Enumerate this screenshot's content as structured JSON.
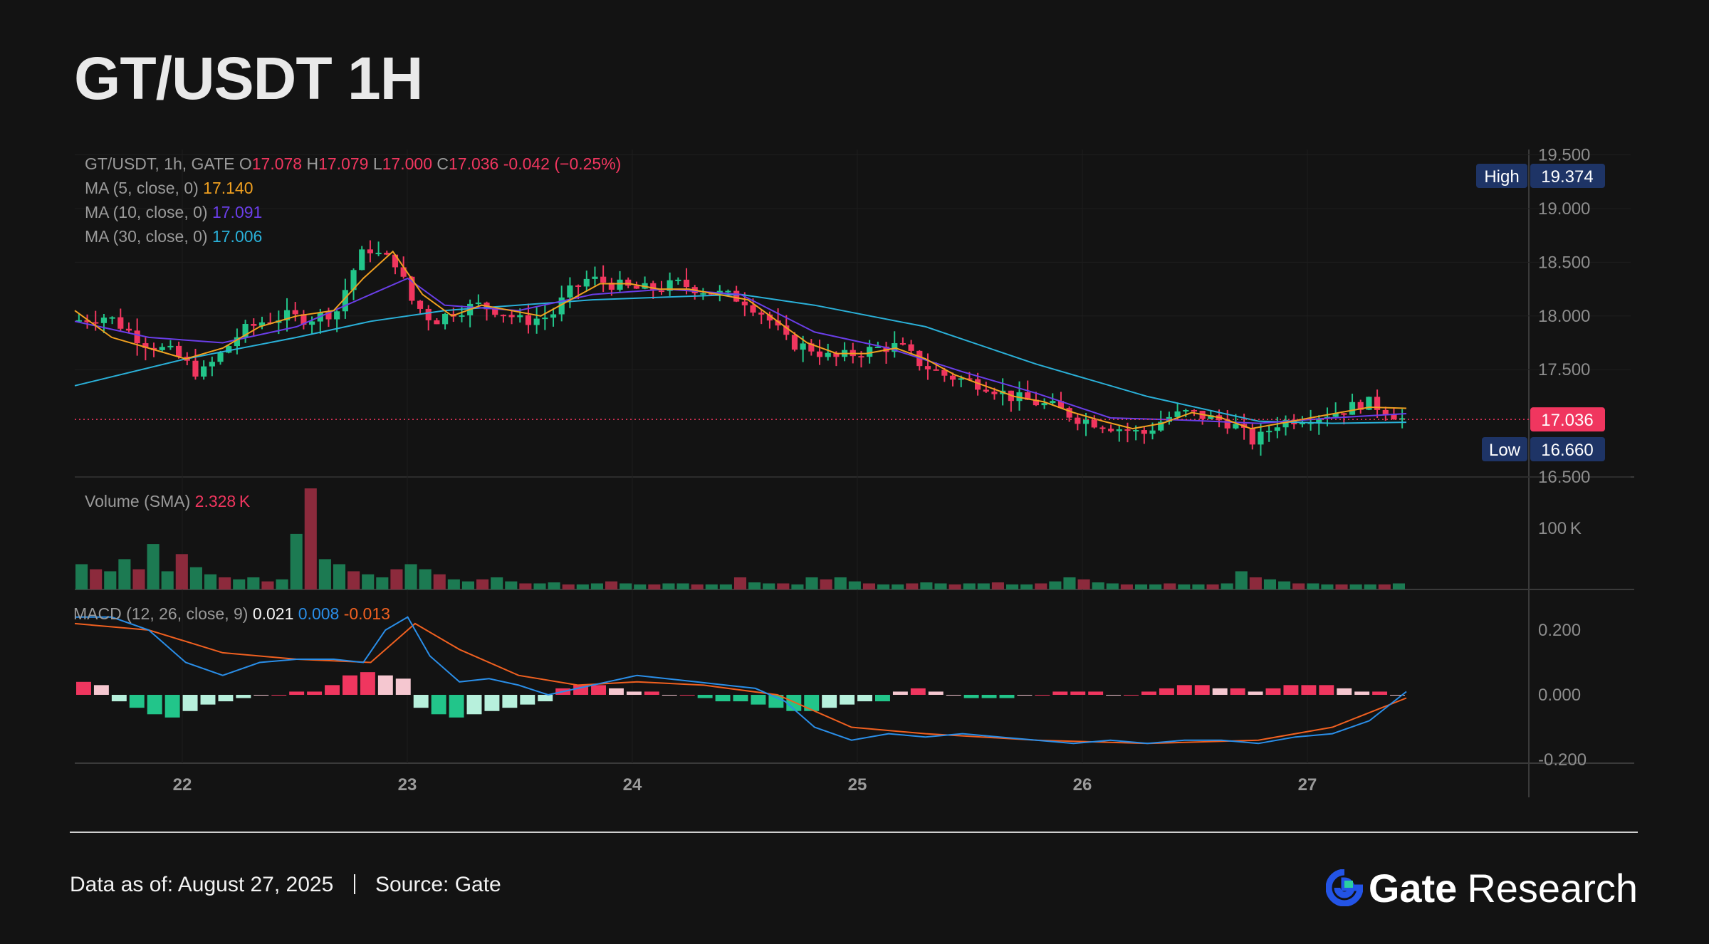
{
  "title": "GT/USDT 1H",
  "chart_data": {
    "type": "candlestick",
    "symbol_line": "GT/USDT, 1h, GATE",
    "ohlc": {
      "open": "17.078",
      "high": "17.079",
      "low": "17.000",
      "close": "17.036",
      "change": "-0.042 (−0.25%)"
    },
    "ma_legend": [
      {
        "label": "MA (5, close, 0)",
        "value": "17.140",
        "color": "#f0a020"
      },
      {
        "label": "MA (10, close, 0)",
        "value": "17.091",
        "color": "#6a3ee8"
      },
      {
        "label": "MA (30, close, 0)",
        "value": "17.006",
        "color": "#2ab0d8"
      }
    ],
    "price_axis": {
      "ticks": [
        "19.500",
        "19.000",
        "18.500",
        "18.000",
        "17.500",
        "16.500"
      ],
      "ylim": [
        16.5,
        19.55
      ]
    },
    "high_label": "High",
    "high_value": "19.374",
    "low_label": "Low",
    "low_value": "16.660",
    "last_price": "17.036",
    "volume_legend": "Volume (SMA)",
    "volume_value": "2.328 K",
    "volume_tick": "100 K",
    "macd_legend": "MACD (12, 26, close, 9)",
    "macd_values": [
      {
        "value": "0.021",
        "color": "#f5f5f5"
      },
      {
        "value": "0.008",
        "color": "#2a8ee8"
      },
      {
        "value": "-0.013",
        "color": "#f06020"
      }
    ],
    "macd_axis": {
      "ticks": [
        "0.200",
        "0.000",
        "-0.200"
      ]
    },
    "x_ticks": [
      "22",
      "23",
      "24",
      "25",
      "26",
      "27"
    ],
    "price_path": [
      [
        0,
        17.95
      ],
      [
        10,
        18.0
      ],
      [
        20,
        17.75
      ],
      [
        28,
        17.65
      ],
      [
        35,
        17.45
      ],
      [
        40,
        17.62
      ],
      [
        46,
        17.85
      ],
      [
        52,
        17.95
      ],
      [
        58,
        18.0
      ],
      [
        64,
        17.97
      ],
      [
        72,
        18.05
      ],
      [
        76,
        18.4
      ],
      [
        80,
        18.65
      ],
      [
        84,
        18.55
      ],
      [
        88,
        18.5
      ],
      [
        92,
        18.15
      ],
      [
        98,
        17.95
      ],
      [
        104,
        18.05
      ],
      [
        110,
        18.1
      ],
      [
        116,
        18.05
      ],
      [
        122,
        17.95
      ],
      [
        130,
        18.0
      ],
      [
        134,
        18.2
      ],
      [
        140,
        18.35
      ],
      [
        146,
        18.3
      ],
      [
        152,
        18.25
      ],
      [
        158,
        18.25
      ],
      [
        164,
        18.3
      ],
      [
        170,
        18.25
      ],
      [
        176,
        18.2
      ],
      [
        182,
        18.15
      ],
      [
        188,
        18.0
      ],
      [
        194,
        17.75
      ],
      [
        200,
        17.7
      ],
      [
        206,
        17.6
      ],
      [
        212,
        17.65
      ],
      [
        218,
        17.7
      ],
      [
        224,
        17.72
      ],
      [
        230,
        17.55
      ],
      [
        236,
        17.45
      ],
      [
        242,
        17.4
      ],
      [
        248,
        17.35
      ],
      [
        254,
        17.25
      ],
      [
        260,
        17.2
      ],
      [
        266,
        17.15
      ],
      [
        272,
        17.05
      ],
      [
        278,
        17.0
      ],
      [
        284,
        16.95
      ],
      [
        290,
        16.9
      ],
      [
        296,
        17.05
      ],
      [
        302,
        17.1
      ],
      [
        308,
        17.05
      ],
      [
        314,
        17.0
      ],
      [
        320,
        16.82
      ],
      [
        326,
        17.0
      ],
      [
        332,
        17.05
      ],
      [
        338,
        17.08
      ],
      [
        344,
        17.12
      ],
      [
        350,
        17.2
      ],
      [
        356,
        17.12
      ],
      [
        360,
        17.04
      ]
    ],
    "ma5_path": [
      [
        0,
        18.05
      ],
      [
        10,
        17.8
      ],
      [
        20,
        17.7
      ],
      [
        30,
        17.6
      ],
      [
        40,
        17.7
      ],
      [
        50,
        17.9
      ],
      [
        60,
        18.0
      ],
      [
        70,
        18.05
      ],
      [
        78,
        18.35
      ],
      [
        86,
        18.6
      ],
      [
        94,
        18.2
      ],
      [
        102,
        18.0
      ],
      [
        110,
        18.1
      ],
      [
        118,
        18.05
      ],
      [
        126,
        18.0
      ],
      [
        134,
        18.15
      ],
      [
        142,
        18.3
      ],
      [
        150,
        18.3
      ],
      [
        158,
        18.25
      ],
      [
        166,
        18.25
      ],
      [
        174,
        18.2
      ],
      [
        182,
        18.15
      ],
      [
        190,
        17.95
      ],
      [
        198,
        17.75
      ],
      [
        206,
        17.65
      ],
      [
        214,
        17.65
      ],
      [
        222,
        17.7
      ],
      [
        230,
        17.6
      ],
      [
        238,
        17.45
      ],
      [
        246,
        17.35
      ],
      [
        254,
        17.25
      ],
      [
        262,
        17.2
      ],
      [
        270,
        17.1
      ],
      [
        278,
        17.02
      ],
      [
        286,
        16.95
      ],
      [
        294,
        17.0
      ],
      [
        302,
        17.1
      ],
      [
        310,
        17.05
      ],
      [
        318,
        16.95
      ],
      [
        326,
        17.0
      ],
      [
        334,
        17.05
      ],
      [
        342,
        17.1
      ],
      [
        350,
        17.15
      ],
      [
        360,
        17.14
      ]
    ],
    "ma10_path": [
      [
        0,
        17.95
      ],
      [
        20,
        17.8
      ],
      [
        40,
        17.75
      ],
      [
        60,
        17.9
      ],
      [
        80,
        18.2
      ],
      [
        90,
        18.35
      ],
      [
        100,
        18.1
      ],
      [
        120,
        18.05
      ],
      [
        140,
        18.2
      ],
      [
        160,
        18.25
      ],
      [
        180,
        18.2
      ],
      [
        200,
        17.85
      ],
      [
        220,
        17.7
      ],
      [
        240,
        17.48
      ],
      [
        260,
        17.28
      ],
      [
        280,
        17.05
      ],
      [
        300,
        17.03
      ],
      [
        320,
        17.0
      ],
      [
        340,
        17.05
      ],
      [
        360,
        17.09
      ]
    ],
    "ma30_path": [
      [
        0,
        17.35
      ],
      [
        30,
        17.6
      ],
      [
        60,
        17.8
      ],
      [
        80,
        17.95
      ],
      [
        100,
        18.05
      ],
      [
        140,
        18.15
      ],
      [
        180,
        18.2
      ],
      [
        200,
        18.1
      ],
      [
        230,
        17.9
      ],
      [
        260,
        17.55
      ],
      [
        290,
        17.25
      ],
      [
        320,
        17.02
      ],
      [
        340,
        17.0
      ],
      [
        360,
        17.01
      ]
    ],
    "volume_series": [
      0.25,
      0.2,
      0.18,
      0.3,
      0.2,
      0.45,
      0.18,
      0.35,
      0.22,
      0.15,
      0.12,
      0.1,
      0.12,
      0.08,
      0.1,
      0.55,
      1.0,
      0.3,
      0.25,
      0.18,
      0.15,
      0.12,
      0.2,
      0.25,
      0.2,
      0.15,
      0.1,
      0.08,
      0.1,
      0.12,
      0.08,
      0.06,
      0.06,
      0.07,
      0.05,
      0.05,
      0.06,
      0.08,
      0.06,
      0.05,
      0.05,
      0.06,
      0.06,
      0.05,
      0.05,
      0.05,
      0.12,
      0.07,
      0.06,
      0.06,
      0.05,
      0.12,
      0.1,
      0.12,
      0.08,
      0.06,
      0.05,
      0.05,
      0.06,
      0.07,
      0.06,
      0.05,
      0.06,
      0.06,
      0.07,
      0.05,
      0.05,
      0.06,
      0.08,
      0.12,
      0.1,
      0.07,
      0.06,
      0.05,
      0.05,
      0.05,
      0.06,
      0.05,
      0.05,
      0.05,
      0.06,
      0.18,
      0.12,
      0.1,
      0.08,
      0.06,
      0.06,
      0.05,
      0.05,
      0.05,
      0.05,
      0.05,
      0.06
    ],
    "macd_line": [
      [
        0,
        0.24
      ],
      [
        10,
        0.24
      ],
      [
        20,
        0.2
      ],
      [
        30,
        0.1
      ],
      [
        40,
        0.06
      ],
      [
        50,
        0.1
      ],
      [
        60,
        0.11
      ],
      [
        70,
        0.11
      ],
      [
        78,
        0.1
      ],
      [
        84,
        0.2
      ],
      [
        90,
        0.24
      ],
      [
        96,
        0.12
      ],
      [
        104,
        0.04
      ],
      [
        112,
        0.05
      ],
      [
        120,
        0.03
      ],
      [
        128,
        0.0
      ],
      [
        136,
        0.02
      ],
      [
        144,
        0.04
      ],
      [
        152,
        0.06
      ],
      [
        160,
        0.05
      ],
      [
        168,
        0.04
      ],
      [
        176,
        0.03
      ],
      [
        184,
        0.02
      ],
      [
        192,
        -0.02
      ],
      [
        200,
        -0.1
      ],
      [
        210,
        -0.14
      ],
      [
        220,
        -0.12
      ],
      [
        230,
        -0.13
      ],
      [
        240,
        -0.12
      ],
      [
        250,
        -0.13
      ],
      [
        260,
        -0.14
      ],
      [
        270,
        -0.15
      ],
      [
        280,
        -0.14
      ],
      [
        290,
        -0.15
      ],
      [
        300,
        -0.14
      ],
      [
        310,
        -0.14
      ],
      [
        320,
        -0.15
      ],
      [
        330,
        -0.13
      ],
      [
        340,
        -0.12
      ],
      [
        350,
        -0.08
      ],
      [
        360,
        0.01
      ]
    ],
    "macd_signal": [
      [
        0,
        0.22
      ],
      [
        20,
        0.2
      ],
      [
        40,
        0.13
      ],
      [
        60,
        0.11
      ],
      [
        80,
        0.1
      ],
      [
        92,
        0.22
      ],
      [
        104,
        0.14
      ],
      [
        120,
        0.06
      ],
      [
        136,
        0.03
      ],
      [
        152,
        0.04
      ],
      [
        170,
        0.03
      ],
      [
        190,
        0.0
      ],
      [
        210,
        -0.1
      ],
      [
        230,
        -0.12
      ],
      [
        260,
        -0.14
      ],
      [
        290,
        -0.15
      ],
      [
        320,
        -0.14
      ],
      [
        340,
        -0.1
      ],
      [
        360,
        -0.01
      ]
    ],
    "macd_hist": [
      0.04,
      0.03,
      -0.02,
      -0.04,
      -0.06,
      -0.07,
      -0.05,
      -0.03,
      -0.02,
      -0.01,
      0.0,
      0.0,
      0.01,
      0.01,
      0.03,
      0.06,
      0.07,
      0.06,
      0.05,
      -0.04,
      -0.06,
      -0.07,
      -0.06,
      -0.05,
      -0.04,
      -0.03,
      -0.02,
      0.02,
      0.03,
      0.03,
      0.02,
      0.01,
      0.01,
      0.0,
      0.0,
      -0.01,
      -0.02,
      -0.02,
      -0.03,
      -0.04,
      -0.05,
      -0.05,
      -0.04,
      -0.03,
      -0.02,
      -0.02,
      0.01,
      0.02,
      0.01,
      0.0,
      -0.01,
      -0.01,
      -0.01,
      0.0,
      0.0,
      0.01,
      0.01,
      0.01,
      0.0,
      0.0,
      0.01,
      0.02,
      0.03,
      0.03,
      0.02,
      0.02,
      0.01,
      0.02,
      0.03,
      0.03,
      0.03,
      0.02,
      0.01,
      0.01,
      0.0
    ]
  },
  "footer": {
    "date_label": "Data as of:",
    "date_value": "August  27, 2025",
    "source_label": "Source:",
    "source_value": "Gate"
  },
  "brand": {
    "name": "Gate",
    "suffix": "Research",
    "color": "#2354e6"
  }
}
